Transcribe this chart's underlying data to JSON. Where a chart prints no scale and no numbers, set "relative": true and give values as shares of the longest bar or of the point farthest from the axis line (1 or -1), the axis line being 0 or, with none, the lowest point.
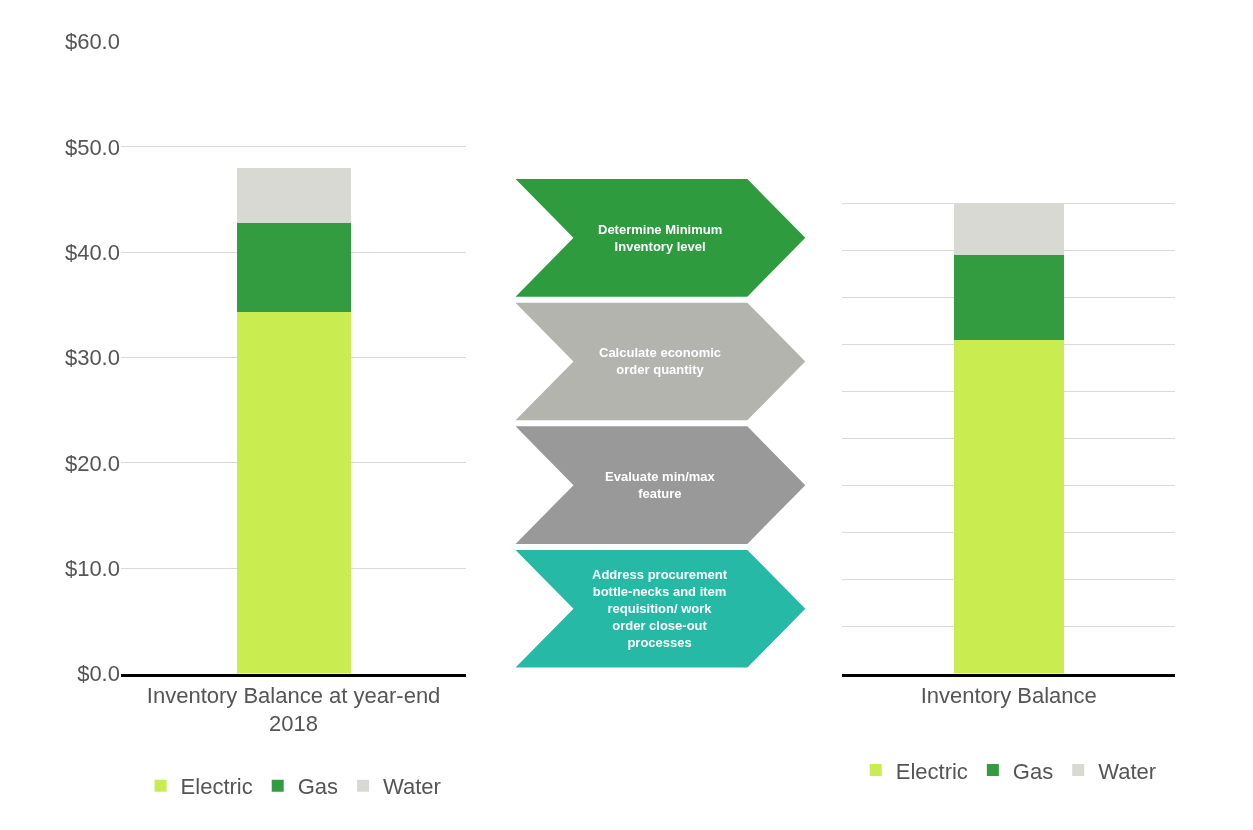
{
  "chart_data": [
    {
      "type": "bar",
      "stacked": true,
      "categories": [
        "Inventory Balance at year-end\n2018"
      ],
      "series": [
        {
          "name": "Electric",
          "color": "#c9ec50",
          "values": [
            34.3
          ]
        },
        {
          "name": "Gas",
          "color": "#339c40",
          "values": [
            8.5
          ]
        },
        {
          "name": "Water",
          "color": "#d9d9d4",
          "values": [
            5.2
          ]
        }
      ],
      "ylim": [
        0,
        60
      ],
      "yticks": [
        {
          "value": 0,
          "label": "$0.0"
        },
        {
          "value": 10,
          "label": "$10.0"
        },
        {
          "value": 20,
          "label": "$20.0"
        },
        {
          "value": 30,
          "label": "$30.0"
        },
        {
          "value": 40,
          "label": "$40.0"
        },
        {
          "value": 50,
          "label": "$50.0"
        },
        {
          "value": 60,
          "label": "$60.0"
        }
      ],
      "grid": "y",
      "legend": "bottom"
    },
    {
      "type": "other",
      "annotations": [
        "Determine Minimum\nInventory level",
        "Calculate economic\norder quantity",
        "Evaluate min/max\nfeature",
        "Address procurement\nbottle-necks and item\nrequisition/ work\norder close-out\nprocesses"
      ]
    },
    {
      "type": "bar",
      "stacked": true,
      "relative": true,
      "categories": [
        "Inventory Balance"
      ],
      "series": [
        {
          "name": "Electric",
          "color": "#c9ec50",
          "values": [
            0.71
          ]
        },
        {
          "name": "Gas",
          "color": "#339c40",
          "values": [
            0.18
          ]
        },
        {
          "name": "Water",
          "color": "#d9d9d4",
          "values": [
            0.11
          ]
        }
      ],
      "grid": "y",
      "legend": "bottom"
    }
  ]
}
